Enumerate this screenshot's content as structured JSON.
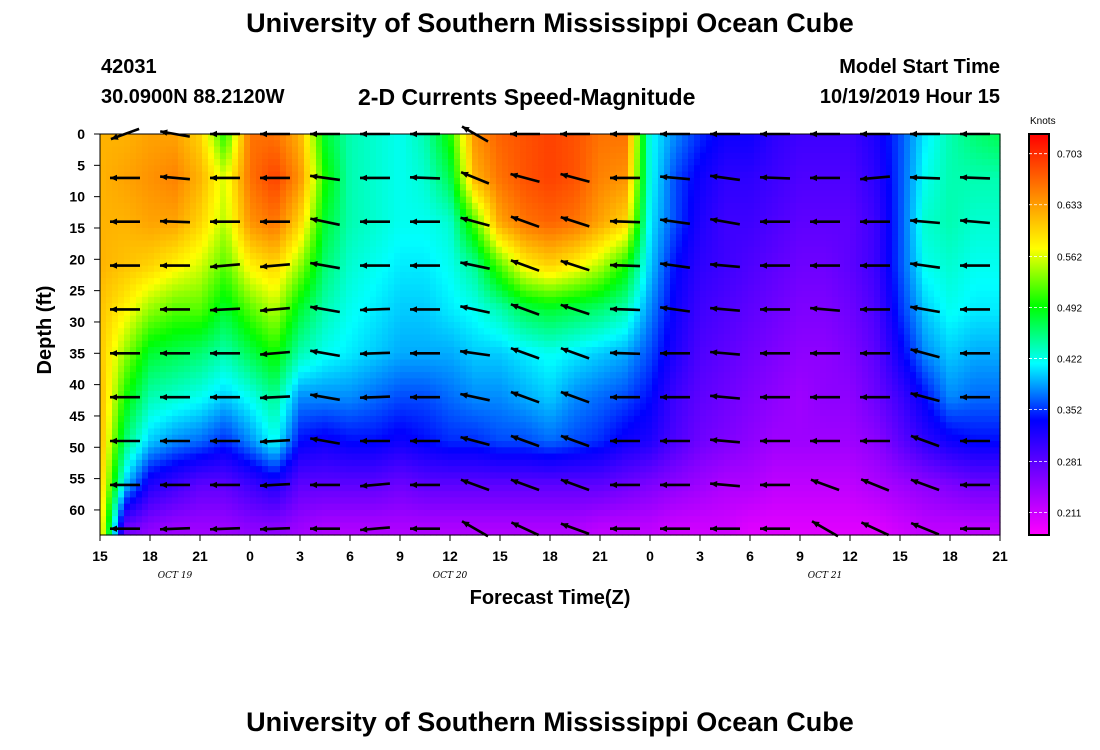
{
  "header": {
    "title": "University of Southern Mississippi Ocean Cube",
    "station_id": "42031",
    "coordinates": "30.0900N 88.2120W",
    "subtitle": "2-D Currents Speed-Magnitude",
    "start_label": "Model Start Time",
    "start_value": "10/19/2019 Hour 15"
  },
  "footer": {
    "title": "University of Southern Mississippi Ocean Cube"
  },
  "chart_data": {
    "type": "heatmap",
    "title": "2-D Currents Speed-Magnitude",
    "xlabel": "Forecast Time(Z)",
    "ylabel": "Depth (ft)",
    "x_tick_labels": [
      "15",
      "18",
      "21",
      "0",
      "3",
      "6",
      "9",
      "12",
      "15",
      "18",
      "21",
      "0",
      "3",
      "6",
      "9",
      "12",
      "15",
      "18",
      "21"
    ],
    "date_labels": [
      {
        "label": "OCT 19",
        "forecast_hour": 4.5
      },
      {
        "label": "OCT 20",
        "forecast_hour": 21
      },
      {
        "label": "OCT 21",
        "forecast_hour": 43.5
      }
    ],
    "xlim_hours": [
      0,
      54
    ],
    "y_ticks": [
      0,
      5,
      10,
      15,
      20,
      25,
      30,
      35,
      40,
      45,
      50,
      55,
      60
    ],
    "ylim": [
      0,
      64
    ],
    "y_inverted": true,
    "colorbar": {
      "label": "Knots",
      "ticks": [
        0.703,
        0.633,
        0.562,
        0.492,
        0.422,
        0.352,
        0.281,
        0.211
      ],
      "range": [
        0.18,
        0.73
      ],
      "colors": [
        "#ff00ff",
        "#8000ff",
        "#0000ff",
        "#00ffff",
        "#00ff00",
        "#ffff00",
        "#ff8000",
        "#ff0000"
      ]
    },
    "speed_grid": {
      "hours": [
        0,
        1.5,
        3,
        4.5,
        6,
        7.5,
        9,
        10.5,
        12,
        13.5,
        15,
        16.5,
        18,
        19.5,
        21,
        22.5,
        24,
        25.5,
        27,
        28.5,
        30,
        31.5,
        33,
        34.5,
        36,
        37.5,
        39,
        40.5,
        42,
        43.5,
        45,
        46.5,
        48,
        49.5,
        51,
        52.5,
        54
      ],
      "depths": [
        0,
        7,
        14,
        21,
        28,
        35,
        42,
        49,
        56,
        63
      ],
      "values": [
        [
          0.62,
          0.62,
          0.62,
          0.62,
          0.61,
          0.61,
          0.62,
          0.62,
          0.61,
          0.6
        ],
        [
          0.62,
          0.63,
          0.62,
          0.61,
          0.58,
          0.54,
          0.5,
          0.46,
          0.4,
          0.27
        ],
        [
          0.63,
          0.64,
          0.63,
          0.6,
          0.54,
          0.48,
          0.44,
          0.4,
          0.32,
          0.25
        ],
        [
          0.63,
          0.65,
          0.63,
          0.58,
          0.52,
          0.47,
          0.43,
          0.38,
          0.3,
          0.24
        ],
        [
          0.6,
          0.62,
          0.6,
          0.56,
          0.52,
          0.46,
          0.42,
          0.37,
          0.28,
          0.24
        ],
        [
          0.5,
          0.56,
          0.55,
          0.52,
          0.48,
          0.44,
          0.4,
          0.35,
          0.28,
          0.24
        ],
        [
          0.66,
          0.66,
          0.64,
          0.58,
          0.52,
          0.47,
          0.42,
          0.38,
          0.3,
          0.25
        ],
        [
          0.66,
          0.69,
          0.66,
          0.6,
          0.55,
          0.5,
          0.45,
          0.42,
          0.32,
          0.25
        ],
        [
          0.62,
          0.64,
          0.6,
          0.54,
          0.48,
          0.44,
          0.38,
          0.34,
          0.28,
          0.24
        ],
        [
          0.48,
          0.5,
          0.48,
          0.46,
          0.44,
          0.42,
          0.38,
          0.33,
          0.28,
          0.23
        ],
        [
          0.44,
          0.44,
          0.44,
          0.43,
          0.42,
          0.41,
          0.38,
          0.34,
          0.28,
          0.23
        ],
        [
          0.43,
          0.43,
          0.43,
          0.42,
          0.41,
          0.4,
          0.37,
          0.34,
          0.28,
          0.23
        ],
        [
          0.42,
          0.42,
          0.42,
          0.41,
          0.4,
          0.39,
          0.36,
          0.33,
          0.27,
          0.23
        ],
        [
          0.44,
          0.43,
          0.42,
          0.41,
          0.4,
          0.39,
          0.36,
          0.34,
          0.28,
          0.23
        ],
        [
          0.5,
          0.47,
          0.43,
          0.42,
          0.41,
          0.39,
          0.37,
          0.35,
          0.28,
          0.23
        ],
        [
          0.64,
          0.62,
          0.52,
          0.45,
          0.42,
          0.4,
          0.38,
          0.35,
          0.28,
          0.23
        ],
        [
          0.67,
          0.66,
          0.63,
          0.52,
          0.44,
          0.4,
          0.38,
          0.36,
          0.28,
          0.23
        ],
        [
          0.68,
          0.68,
          0.66,
          0.58,
          0.47,
          0.41,
          0.39,
          0.36,
          0.28,
          0.23
        ],
        [
          0.69,
          0.69,
          0.67,
          0.6,
          0.48,
          0.42,
          0.4,
          0.37,
          0.28,
          0.23
        ],
        [
          0.68,
          0.68,
          0.66,
          0.58,
          0.47,
          0.41,
          0.38,
          0.36,
          0.28,
          0.23
        ],
        [
          0.66,
          0.65,
          0.63,
          0.55,
          0.46,
          0.4,
          0.37,
          0.35,
          0.28,
          0.22
        ],
        [
          0.66,
          0.64,
          0.6,
          0.5,
          0.44,
          0.39,
          0.36,
          0.33,
          0.27,
          0.22
        ],
        [
          0.42,
          0.42,
          0.41,
          0.4,
          0.38,
          0.36,
          0.34,
          0.32,
          0.26,
          0.22
        ],
        [
          0.38,
          0.36,
          0.36,
          0.34,
          0.33,
          0.32,
          0.3,
          0.29,
          0.25,
          0.21
        ],
        [
          0.35,
          0.33,
          0.32,
          0.31,
          0.3,
          0.29,
          0.28,
          0.27,
          0.24,
          0.21
        ],
        [
          0.33,
          0.31,
          0.3,
          0.3,
          0.29,
          0.28,
          0.27,
          0.26,
          0.23,
          0.21
        ],
        [
          0.33,
          0.31,
          0.3,
          0.29,
          0.28,
          0.27,
          0.26,
          0.25,
          0.23,
          0.2
        ],
        [
          0.31,
          0.3,
          0.29,
          0.28,
          0.27,
          0.26,
          0.25,
          0.24,
          0.22,
          0.2
        ],
        [
          0.3,
          0.29,
          0.28,
          0.27,
          0.26,
          0.25,
          0.24,
          0.24,
          0.22,
          0.2
        ],
        [
          0.3,
          0.29,
          0.28,
          0.27,
          0.26,
          0.25,
          0.25,
          0.24,
          0.22,
          0.2
        ],
        [
          0.3,
          0.29,
          0.28,
          0.28,
          0.27,
          0.26,
          0.25,
          0.24,
          0.22,
          0.2
        ],
        [
          0.32,
          0.31,
          0.3,
          0.3,
          0.29,
          0.28,
          0.27,
          0.25,
          0.23,
          0.2
        ],
        [
          0.36,
          0.36,
          0.36,
          0.36,
          0.35,
          0.33,
          0.3,
          0.28,
          0.24,
          0.21
        ],
        [
          0.41,
          0.42,
          0.43,
          0.42,
          0.4,
          0.38,
          0.34,
          0.31,
          0.25,
          0.22
        ],
        [
          0.44,
          0.44,
          0.44,
          0.43,
          0.42,
          0.4,
          0.38,
          0.33,
          0.26,
          0.22
        ],
        [
          0.46,
          0.44,
          0.43,
          0.42,
          0.41,
          0.39,
          0.37,
          0.34,
          0.27,
          0.22
        ],
        [
          0.47,
          0.44,
          0.43,
          0.42,
          0.41,
          0.39,
          0.37,
          0.34,
          0.27,
          0.22
        ]
      ]
    },
    "current_vectors": {
      "hours": [
        1.5,
        4.5,
        7.5,
        10.5,
        13.5,
        16.5,
        19.5,
        22.5,
        25.5,
        28.5,
        31.5,
        34.5,
        37.5,
        40.5,
        43.5,
        46.5,
        49.5,
        52.5
      ],
      "depths": [
        0,
        7,
        14,
        21,
        28,
        35,
        42,
        49,
        56,
        63
      ],
      "direction_deg": [
        [
          200,
          180,
          180,
          180,
          180,
          180,
          180,
          180,
          180,
          180
        ],
        [
          170,
          175,
          178,
          180,
          180,
          180,
          180,
          180,
          180,
          182
        ],
        [
          180,
          180,
          180,
          185,
          183,
          180,
          180,
          180,
          180,
          182
        ],
        [
          180,
          180,
          180,
          185,
          185,
          185,
          183,
          183,
          183,
          182
        ],
        [
          180,
          172,
          168,
          170,
          170,
          170,
          170,
          170,
          180,
          180
        ],
        [
          180,
          180,
          180,
          180,
          182,
          182,
          182,
          180,
          185,
          185
        ],
        [
          180,
          178,
          180,
          180,
          180,
          180,
          180,
          180,
          180,
          180
        ],
        [
          150,
          158,
          165,
          168,
          168,
          172,
          168,
          165,
          160,
          150
        ],
        [
          180,
          165,
          160,
          160,
          160,
          160,
          160,
          160,
          160,
          155
        ],
        [
          180,
          165,
          162,
          162,
          162,
          160,
          160,
          160,
          160,
          160
        ],
        [
          180,
          180,
          178,
          178,
          178,
          178,
          180,
          180,
          180,
          180
        ],
        [
          180,
          175,
          172,
          172,
          172,
          180,
          180,
          180,
          180,
          180
        ],
        [
          180,
          172,
          170,
          175,
          175,
          175,
          175,
          175,
          175,
          180
        ],
        [
          180,
          178,
          180,
          180,
          180,
          180,
          180,
          180,
          180,
          180
        ],
        [
          180,
          180,
          180,
          180,
          175,
          180,
          180,
          180,
          160,
          150
        ],
        [
          180,
          185,
          180,
          180,
          180,
          180,
          180,
          180,
          158,
          155
        ],
        [
          180,
          178,
          175,
          172,
          170,
          165,
          165,
          160,
          160,
          158
        ],
        [
          180,
          178,
          175,
          180,
          180,
          180,
          180,
          180,
          180,
          180
        ]
      ]
    }
  }
}
